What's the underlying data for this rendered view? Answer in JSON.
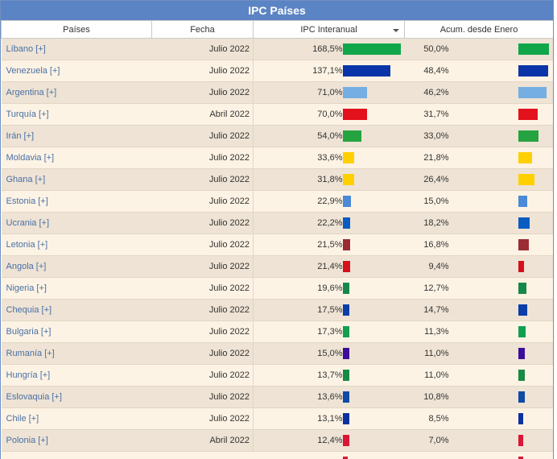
{
  "title": "IPC Países",
  "columns": {
    "country": "Países",
    "date": "Fecha",
    "ipc": "IPC Interanual",
    "accum": "Acum. desde Enero"
  },
  "rows": [
    {
      "country": "Líbano [+]",
      "date": "Julio 2022",
      "ipc": "168,5%",
      "ipc_value": 168.5,
      "accum": "50,0%",
      "accum_value": 50.0,
      "color": "#10a64a"
    },
    {
      "country": "Venezuela [+]",
      "date": "Julio 2022",
      "ipc": "137,1%",
      "ipc_value": 137.1,
      "accum": "48,4%",
      "accum_value": 48.4,
      "color": "#0a35a8"
    },
    {
      "country": "Argentina [+]",
      "date": "Julio 2022",
      "ipc": "71,0%",
      "ipc_value": 71.0,
      "accum": "46,2%",
      "accum_value": 46.2,
      "color": "#74aee3"
    },
    {
      "country": "Turquía [+]",
      "date": "Abril 2022",
      "ipc": "70,0%",
      "ipc_value": 70.0,
      "accum": "31,7%",
      "accum_value": 31.7,
      "color": "#e3111b"
    },
    {
      "country": "Irán [+]",
      "date": "Julio 2022",
      "ipc": "54,0%",
      "ipc_value": 54.0,
      "accum": "33,0%",
      "accum_value": 33.0,
      "color": "#26a341"
    },
    {
      "country": "Moldavia [+]",
      "date": "Julio 2022",
      "ipc": "33,6%",
      "ipc_value": 33.6,
      "accum": "21,8%",
      "accum_value": 21.8,
      "color": "#ffd000"
    },
    {
      "country": "Ghana [+]",
      "date": "Julio 2022",
      "ipc": "31,8%",
      "ipc_value": 31.8,
      "accum": "26,4%",
      "accum_value": 26.4,
      "color": "#ffd000"
    },
    {
      "country": "Estonia [+]",
      "date": "Julio 2022",
      "ipc": "22,9%",
      "ipc_value": 22.9,
      "accum": "15,0%",
      "accum_value": 15.0,
      "color": "#4a8ad6"
    },
    {
      "country": "Ucrania [+]",
      "date": "Julio 2022",
      "ipc": "22,2%",
      "ipc_value": 22.2,
      "accum": "18,2%",
      "accum_value": 18.2,
      "color": "#0a5bc2"
    },
    {
      "country": "Letonia [+]",
      "date": "Julio 2022",
      "ipc": "21,5%",
      "ipc_value": 21.5,
      "accum": "16,8%",
      "accum_value": 16.8,
      "color": "#9b2b35"
    },
    {
      "country": "Angola [+]",
      "date": "Julio 2022",
      "ipc": "21,4%",
      "ipc_value": 21.4,
      "accum": "9,4%",
      "accum_value": 9.4,
      "color": "#d6101b"
    },
    {
      "country": "Nigeria [+]",
      "date": "Julio 2022",
      "ipc": "19,6%",
      "ipc_value": 19.6,
      "accum": "12,7%",
      "accum_value": 12.7,
      "color": "#16874a"
    },
    {
      "country": "Chequia [+]",
      "date": "Julio 2022",
      "ipc": "17,5%",
      "ipc_value": 17.5,
      "accum": "14,7%",
      "accum_value": 14.7,
      "color": "#0a3ea8"
    },
    {
      "country": "Bulgaria [+]",
      "date": "Julio 2022",
      "ipc": "17,3%",
      "ipc_value": 17.3,
      "accum": "11,3%",
      "accum_value": 11.3,
      "color": "#12a050"
    },
    {
      "country": "Rumanía [+]",
      "date": "Julio 2022",
      "ipc": "15,0%",
      "ipc_value": 15.0,
      "accum": "11,0%",
      "accum_value": 11.0,
      "color": "#3c0d99"
    },
    {
      "country": "Hungría [+]",
      "date": "Julio 2022",
      "ipc": "13,7%",
      "ipc_value": 13.7,
      "accum": "11,0%",
      "accum_value": 11.0,
      "color": "#198a45"
    },
    {
      "country": "Eslovaquia [+]",
      "date": "Julio 2022",
      "ipc": "13,6%",
      "ipc_value": 13.6,
      "accum": "10,8%",
      "accum_value": 10.8,
      "color": "#0e4aa6"
    },
    {
      "country": "Chile [+]",
      "date": "Julio 2022",
      "ipc": "13,1%",
      "ipc_value": 13.1,
      "accum": "8,5%",
      "accum_value": 8.5,
      "color": "#0b32a0"
    },
    {
      "country": "Polonia [+]",
      "date": "Abril 2022",
      "ipc": "12,4%",
      "ipc_value": 12.4,
      "accum": "7,0%",
      "accum_value": 7.0,
      "color": "#dc1436"
    }
  ],
  "partial_row": {
    "color": "#dc1436"
  }
}
